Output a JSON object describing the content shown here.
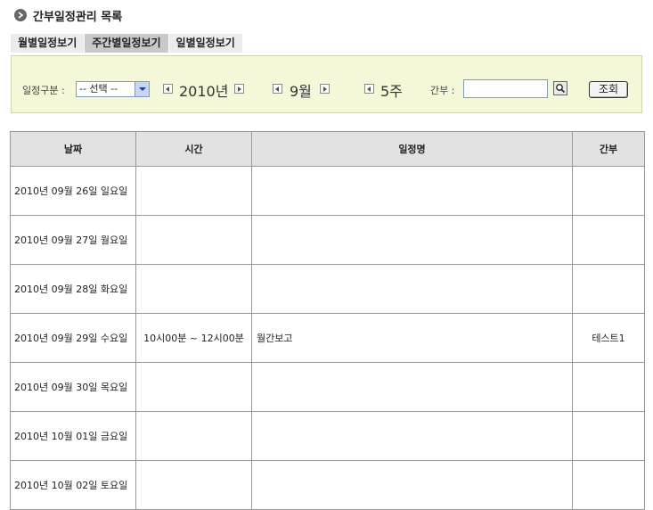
{
  "page": {
    "title": "간부일정관리 목록"
  },
  "tabs": [
    {
      "label": "월별일정보기",
      "active": false
    },
    {
      "label": "주간별일정보기",
      "active": true
    },
    {
      "label": "일별일정보기",
      "active": false
    }
  ],
  "filter": {
    "category_label": "일정구분 :",
    "category_selected": "-- 선택 --",
    "year": "2010년",
    "month": "9월",
    "week": "5주",
    "person_label": "간부 :",
    "person_value": "",
    "search_button": "조회"
  },
  "table": {
    "headers": [
      "날짜",
      "시간",
      "일정명",
      "간부"
    ],
    "rows": [
      {
        "date": "2010년 09월 26일 일요일",
        "time": "",
        "title": "",
        "person": ""
      },
      {
        "date": "2010년 09월 27일 월요일",
        "time": "",
        "title": "",
        "person": ""
      },
      {
        "date": "2010년 09월 28일 화요일",
        "time": "",
        "title": "",
        "person": ""
      },
      {
        "date": "2010년 09월 29일 수요일",
        "time": "10시00분 ~ 12시00분",
        "title": "월간보고",
        "person": "테스트1"
      },
      {
        "date": "2010년 09월 30일 목요일",
        "time": "",
        "title": "",
        "person": ""
      },
      {
        "date": "2010년 10월 01일 금요일",
        "time": "",
        "title": "",
        "person": ""
      },
      {
        "date": "2010년 10월 02일 토요일",
        "time": "",
        "title": "",
        "person": ""
      }
    ]
  },
  "colors": {
    "filter_background": "#f5f8d8",
    "header_background": "#e2e2e2",
    "active_tab": "#c9c9c9"
  }
}
